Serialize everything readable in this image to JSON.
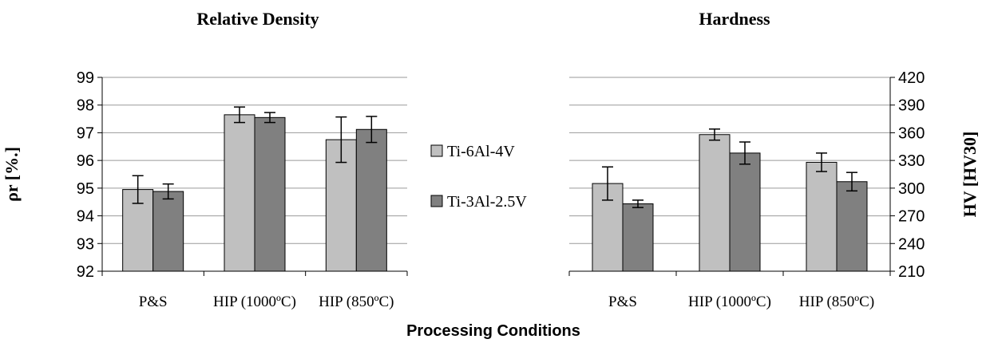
{
  "xlabel": "Processing Conditions",
  "legend": [
    {
      "name": "Ti-6Al-4V",
      "color": "#c0c0c0"
    },
    {
      "name": "Ti-3Al-2.5V",
      "color": "#808080"
    }
  ],
  "chart_data": [
    {
      "type": "bar",
      "title": "Relative Density",
      "ylabel": "ρr [%.]",
      "ylim": [
        92,
        99
      ],
      "yticks": [
        92,
        93,
        94,
        95,
        96,
        97,
        98,
        99
      ],
      "grid": true,
      "categories": [
        "P&S",
        "HIP (1000ºC)",
        "HIP (850ºC)"
      ],
      "series": [
        {
          "name": "Ti-6Al-4V",
          "values": [
            94.95,
            97.65,
            96.75
          ],
          "errors": [
            0.5,
            0.28,
            0.82
          ],
          "color": "#c0c0c0"
        },
        {
          "name": "Ti-3Al-2.5V",
          "values": [
            94.88,
            97.55,
            97.12
          ],
          "errors": [
            0.27,
            0.18,
            0.47
          ],
          "color": "#808080"
        }
      ]
    },
    {
      "type": "bar",
      "title": "Hardness",
      "ylabel": "HV [HV30]",
      "ylim": [
        210,
        420
      ],
      "yticks": [
        210,
        240,
        270,
        300,
        330,
        360,
        390,
        420
      ],
      "grid": true,
      "categories": [
        "P&S",
        "HIP (1000ºC)",
        "HIP (850ºC)"
      ],
      "series": [
        {
          "name": "Ti-6Al-4V",
          "values": [
            305,
            358,
            328
          ],
          "errors": [
            18,
            6,
            10
          ],
          "color": "#c0c0c0"
        },
        {
          "name": "Ti-3Al-2.5V",
          "values": [
            283,
            338,
            307
          ],
          "errors": [
            4,
            12,
            10
          ],
          "color": "#808080"
        }
      ]
    }
  ]
}
